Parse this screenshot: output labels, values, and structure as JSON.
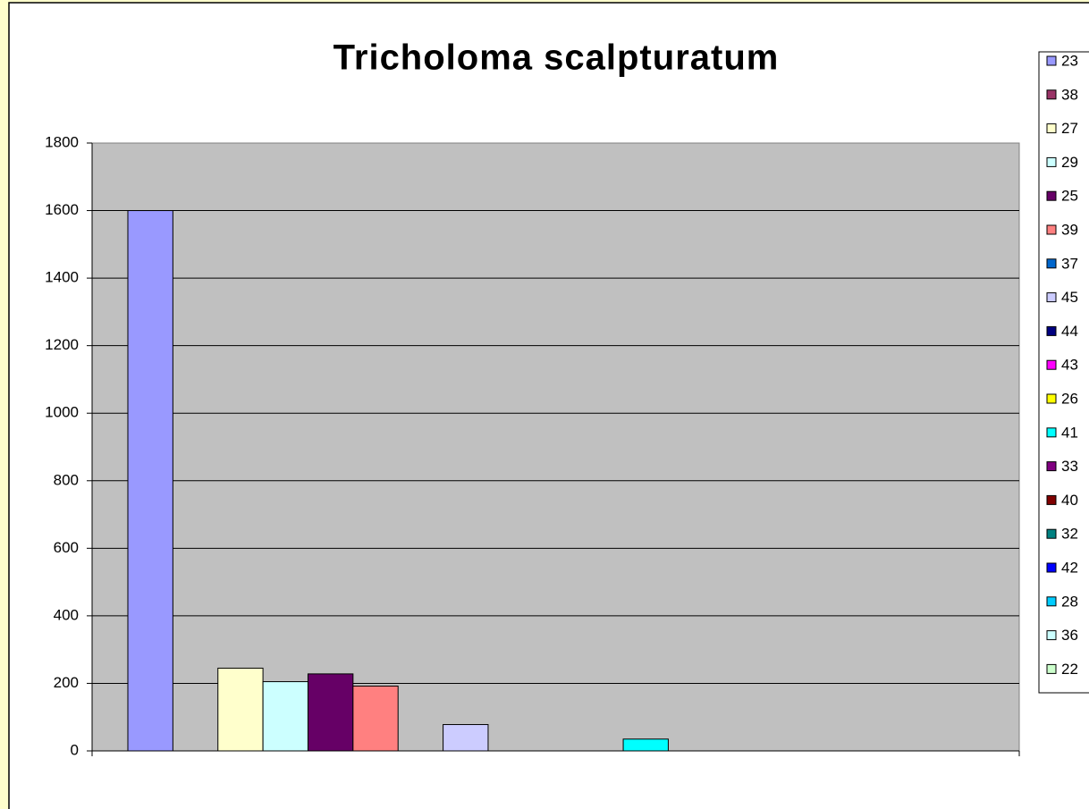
{
  "chart_data": {
    "type": "bar",
    "title": "Tricholoma scalpturatum",
    "ylim": [
      0,
      1800
    ],
    "yticks": [
      0,
      200,
      400,
      600,
      800,
      1000,
      1200,
      1400,
      1600,
      1800
    ],
    "grid": true,
    "legend": "right",
    "series": [
      {
        "name": "23",
        "color": "#9999ff",
        "values": [
          1600
        ]
      },
      {
        "name": "38",
        "color": "#993366",
        "values": [
          0
        ]
      },
      {
        "name": "27",
        "color": "#ffffcc",
        "values": [
          245
        ]
      },
      {
        "name": "29",
        "color": "#ccffff",
        "values": [
          205
        ]
      },
      {
        "name": "25",
        "color": "#660066",
        "values": [
          228
        ]
      },
      {
        "name": "39",
        "color": "#ff8080",
        "values": [
          192
        ]
      },
      {
        "name": "37",
        "color": "#0066cc",
        "values": [
          0
        ]
      },
      {
        "name": "45",
        "color": "#ccccff",
        "values": [
          78
        ]
      },
      {
        "name": "44",
        "color": "#000080",
        "values": [
          0
        ]
      },
      {
        "name": "43",
        "color": "#ff00ff",
        "values": [
          0
        ]
      },
      {
        "name": "26",
        "color": "#ffff00",
        "values": [
          0
        ]
      },
      {
        "name": "41",
        "color": "#00ffff",
        "values": [
          35
        ]
      },
      {
        "name": "33",
        "color": "#800080",
        "values": [
          0
        ]
      },
      {
        "name": "40",
        "color": "#800000",
        "values": [
          0
        ]
      },
      {
        "name": "32",
        "color": "#008080",
        "values": [
          0
        ]
      },
      {
        "name": "42",
        "color": "#0000ff",
        "values": [
          0
        ]
      },
      {
        "name": "28",
        "color": "#00ccff",
        "values": [
          0
        ]
      },
      {
        "name": "36",
        "color": "#ccffff",
        "values": [
          0
        ]
      },
      {
        "name": "22",
        "color": "#ccffcc",
        "values": [
          0
        ]
      }
    ]
  }
}
